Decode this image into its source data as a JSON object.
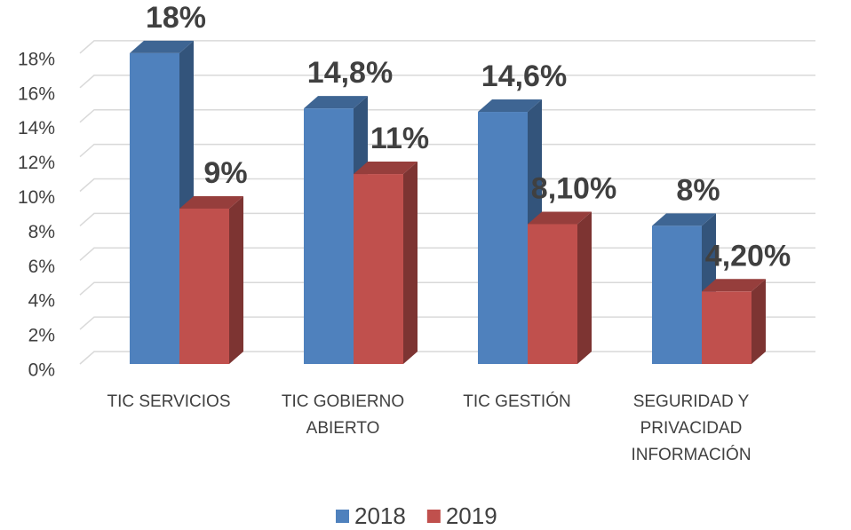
{
  "chart_data": {
    "type": "bar3d",
    "categories": [
      "TIC SERVICIOS",
      "TIC GOBIERNO ABIERTO",
      "TIC GESTIÓN",
      "SEGURIDAD Y PRIVACIDAD INFORMACIÓN"
    ],
    "series": [
      {
        "name": "2018",
        "color": "#4f81bd",
        "values": [
          18,
          14.8,
          14.6,
          8
        ],
        "value_labels": [
          "18%",
          "14,8%",
          "14,6%",
          "8%"
        ]
      },
      {
        "name": "2019",
        "color": "#c0504d",
        "values": [
          9,
          11,
          8.1,
          4.2
        ],
        "value_labels": [
          "9%",
          "11%",
          "8,10%",
          "4,20%"
        ]
      }
    ],
    "ylim": [
      0,
      20
    ],
    "yticks": [
      {
        "value": 0,
        "label": "0%"
      },
      {
        "value": 2,
        "label": "2%"
      },
      {
        "value": 4,
        "label": "4%"
      },
      {
        "value": 6,
        "label": "6%"
      },
      {
        "value": 8,
        "label": "8%"
      },
      {
        "value": 10,
        "label": "10%"
      },
      {
        "value": 12,
        "label": "12%"
      },
      {
        "value": 14,
        "label": "14%"
      },
      {
        "value": 16,
        "label": "16%"
      },
      {
        "value": 18,
        "label": "18%"
      }
    ],
    "grid": true,
    "legend": "bottom"
  }
}
